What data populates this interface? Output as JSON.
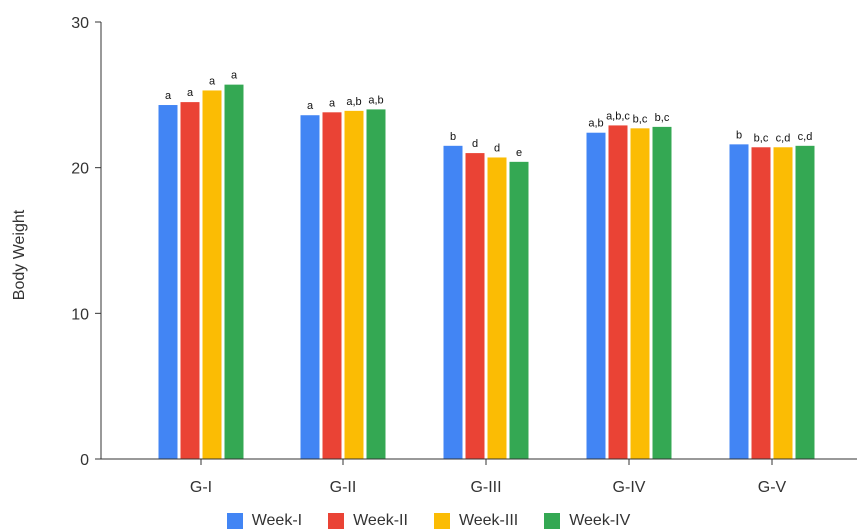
{
  "chart_data": {
    "type": "bar",
    "title": "",
    "xlabel": "",
    "ylabel": "Body Weight",
    "ylim": [
      0,
      30
    ],
    "yticks": [
      0,
      10,
      20,
      30
    ],
    "grid": false,
    "legend_position": "bottom",
    "categories": [
      "G-I",
      "G-II",
      "G-III",
      "G-IV",
      "G-V"
    ],
    "series": [
      {
        "name": "Week-I",
        "color": "#4285f4",
        "values": [
          24.3,
          23.6,
          21.5,
          22.4,
          21.6
        ],
        "labels": [
          "a",
          "a",
          "b",
          "a,b",
          "b"
        ]
      },
      {
        "name": "Week-II",
        "color": "#ea4335",
        "values": [
          24.5,
          23.8,
          21.0,
          22.9,
          21.4
        ],
        "labels": [
          "a",
          "a",
          "d",
          "a,b,c",
          "b,c"
        ]
      },
      {
        "name": "Week-III",
        "color": "#fbbc04",
        "values": [
          25.3,
          23.9,
          20.7,
          22.7,
          21.4
        ],
        "labels": [
          "a",
          "a,b",
          "d",
          "b,c",
          "c,d"
        ]
      },
      {
        "name": "Week-IV",
        "color": "#34a853",
        "values": [
          25.7,
          24.0,
          20.4,
          22.8,
          21.5
        ],
        "labels": [
          "a",
          "a,b",
          "e",
          "b,c",
          "c,d"
        ]
      }
    ]
  }
}
